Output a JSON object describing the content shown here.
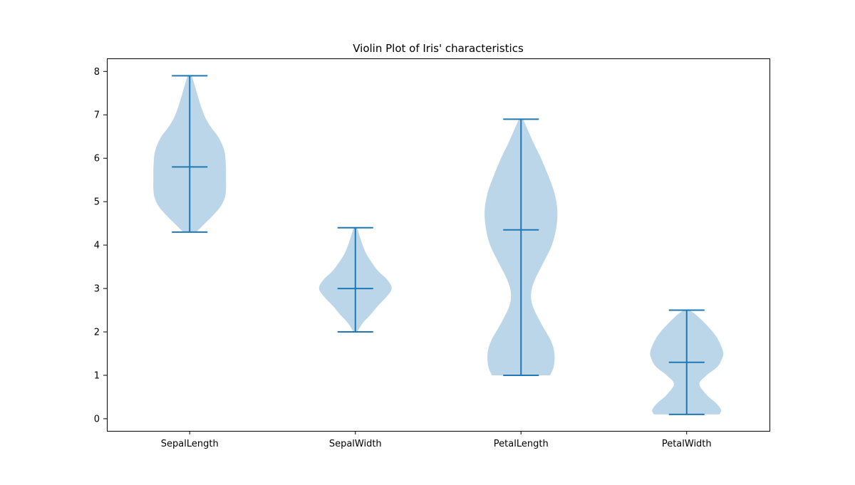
{
  "chart_data": {
    "type": "violin",
    "title": "Violin Plot of Iris' characteristics",
    "xlabel": "",
    "ylabel": "",
    "categories": [
      "SepalLength",
      "SepalWidth",
      "PetalLength",
      "PetalWidth"
    ],
    "ylim": [
      -0.28,
      8.3
    ],
    "yticks": [
      0,
      1,
      2,
      3,
      4,
      5,
      6,
      7,
      8
    ],
    "grid": false,
    "colors": {
      "violin_fill": "#1f77b4",
      "violin_fill_opacity": 0.3,
      "lines": "#1f77b4",
      "axes": "#000000"
    },
    "series": [
      {
        "category": "SepalLength",
        "min": 4.3,
        "max": 7.9,
        "median": 5.8,
        "density_y": [
          4.3,
          4.5,
          4.7,
          4.9,
          5.1,
          5.3,
          5.5,
          5.7,
          5.9,
          6.1,
          6.3,
          6.5,
          6.7,
          6.9,
          7.1,
          7.3,
          7.5,
          7.7,
          7.9
        ],
        "density_w": [
          0.18,
          0.42,
          0.66,
          0.86,
          0.97,
          1.0,
          1.0,
          1.0,
          0.99,
          0.97,
          0.9,
          0.78,
          0.6,
          0.45,
          0.35,
          0.27,
          0.2,
          0.13,
          0.06
        ]
      },
      {
        "category": "SepalWidth",
        "min": 2.0,
        "max": 4.4,
        "median": 3.0,
        "density_y": [
          2.0,
          2.2,
          2.4,
          2.6,
          2.8,
          3.0,
          3.2,
          3.4,
          3.6,
          3.8,
          4.0,
          4.2,
          4.4
        ],
        "density_w": [
          0.05,
          0.2,
          0.42,
          0.62,
          0.85,
          1.0,
          0.88,
          0.63,
          0.45,
          0.3,
          0.2,
          0.12,
          0.05
        ]
      },
      {
        "category": "PetalLength",
        "min": 1.0,
        "max": 6.9,
        "median": 4.35,
        "density_y": [
          1.0,
          1.2,
          1.5,
          1.8,
          2.2,
          2.6,
          2.9,
          3.2,
          3.6,
          4.0,
          4.4,
          4.8,
          5.2,
          5.6,
          6.0,
          6.4,
          6.9
        ],
        "density_w": [
          0.8,
          0.9,
          0.92,
          0.82,
          0.55,
          0.32,
          0.28,
          0.38,
          0.62,
          0.85,
          0.97,
          1.0,
          0.92,
          0.75,
          0.55,
          0.32,
          0.06
        ]
      },
      {
        "category": "PetalWidth",
        "min": 0.1,
        "max": 2.5,
        "median": 1.3,
        "density_y": [
          0.1,
          0.2,
          0.35,
          0.55,
          0.8,
          1.0,
          1.2,
          1.4,
          1.55,
          1.8,
          2.0,
          2.2,
          2.4,
          2.5
        ],
        "density_w": [
          0.9,
          0.95,
          0.82,
          0.55,
          0.35,
          0.55,
          0.85,
          0.98,
          1.0,
          0.88,
          0.72,
          0.5,
          0.25,
          0.08
        ]
      }
    ]
  }
}
